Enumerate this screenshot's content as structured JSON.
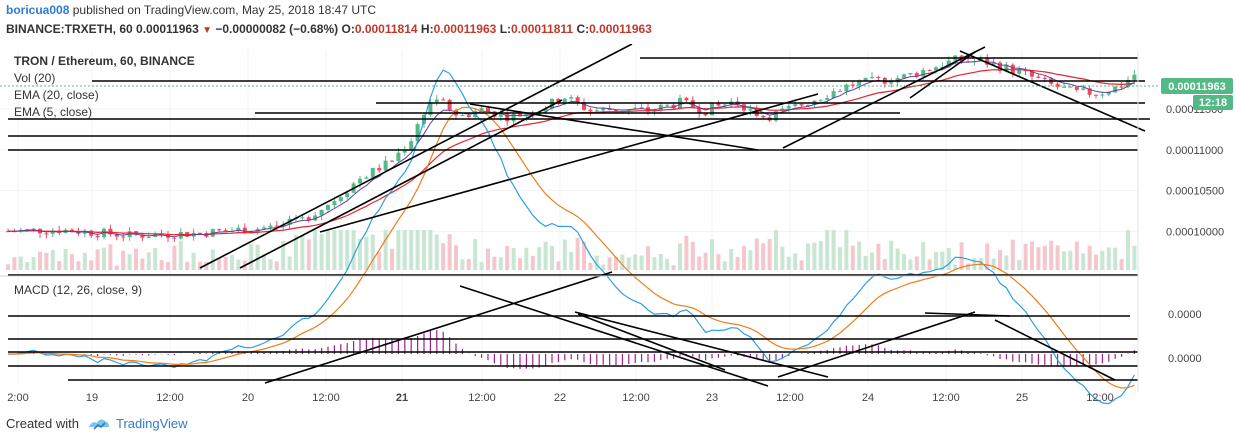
{
  "header": {
    "author": "boricua008",
    "published_text": "published on TradingView.com, May 25, 2018 18:47 UTC",
    "symbol_line": "BINANCE:TRXETH, 60",
    "last": "0.00011963",
    "change": "−0.00000082 (−0.68%)",
    "o_label": "O:",
    "o": "0.00011814",
    "h_label": "H:",
    "h": "0.00011963",
    "l_label": "L:",
    "l": "0.00011811",
    "c_label": "C:",
    "c": "0.00011963"
  },
  "legend": {
    "title": "TRON / Ethereum, 60, BINANCE",
    "vol": "Vol (20)",
    "ema20": "EMA (20, close)",
    "ema5": "EMA (5, close)",
    "macd": "MACD (12, 26, close, 9)"
  },
  "footer": {
    "created": "Created with",
    "brand": "TradingView"
  },
  "colors": {
    "up": "#53b987",
    "down": "#eb4d5c",
    "vol_up": "#c8e6d2",
    "vol_down": "#f3c7cc",
    "ema20": "#e8262f",
    "ema5": "#6a3d9a",
    "macd": "#2d9fe3",
    "signal": "#ef7d1a",
    "hist": "#a1218a",
    "drawing": "#000000",
    "price_badge": "#53b987"
  },
  "chart_data": {
    "type": "candlestick",
    "price_axis": {
      "ticks": [
        0.0001,
        0.000105,
        0.00011,
        0.000115
      ],
      "tick_labels": [
        "0.00010000",
        "0.00010500",
        "0.00011000",
        "0.00011500"
      ],
      "range": [
        9.55e-05,
        0.000122
      ]
    },
    "current_price": {
      "value": "0.00011963",
      "countdown": "12:18"
    },
    "macd_axis": {
      "ticks": [
        0.0,
        0.0
      ],
      "tick_labels": [
        "0.0000",
        "0.0000"
      ]
    },
    "x_axis": {
      "labels": [
        "2:00",
        "19",
        "12:00",
        "20",
        "12:00",
        "21",
        "12:00",
        "22",
        "12:00",
        "23",
        "12:00",
        "24",
        "12:00",
        "25",
        "12:00"
      ],
      "bold": [
        false,
        false,
        false,
        false,
        false,
        true,
        false,
        false,
        false,
        false,
        false,
        false,
        false,
        false,
        false
      ]
    },
    "price_path": [
      [
        0,
        0.0001
      ],
      [
        60,
        0.0001002
      ],
      [
        130,
        9.95e-05
      ],
      [
        200,
        9.98e-05
      ],
      [
        270,
        0.0001005
      ],
      [
        300,
        0.0001012
      ],
      [
        330,
        0.0001035
      ],
      [
        360,
        0.0001065
      ],
      [
        390,
        0.0001085
      ],
      [
        410,
        0.000111
      ],
      [
        425,
        0.000115
      ],
      [
        435,
        0.0001165
      ],
      [
        460,
        0.000114
      ],
      [
        480,
        0.000115
      ],
      [
        510,
        0.000114
      ],
      [
        540,
        0.000115
      ],
      [
        565,
        0.0001165
      ],
      [
        590,
        0.0001148
      ],
      [
        620,
        0.000115
      ],
      [
        650,
        0.0001148
      ],
      [
        680,
        0.0001158
      ],
      [
        705,
        0.0001148
      ],
      [
        735,
        0.000116
      ],
      [
        765,
        0.000114
      ],
      [
        790,
        0.000115
      ],
      [
        820,
        0.0001165
      ],
      [
        850,
        0.000118
      ],
      [
        880,
        0.0001185
      ],
      [
        905,
        0.000119
      ],
      [
        930,
        0.00012
      ],
      [
        955,
        0.000121
      ],
      [
        985,
        0.0001208
      ],
      [
        1020,
        0.0001195
      ],
      [
        1050,
        0.000118
      ],
      [
        1075,
        0.000117
      ],
      [
        1100,
        0.000117
      ],
      [
        1120,
        0.0001178
      ],
      [
        1138,
        0.0001196
      ]
    ]
  }
}
